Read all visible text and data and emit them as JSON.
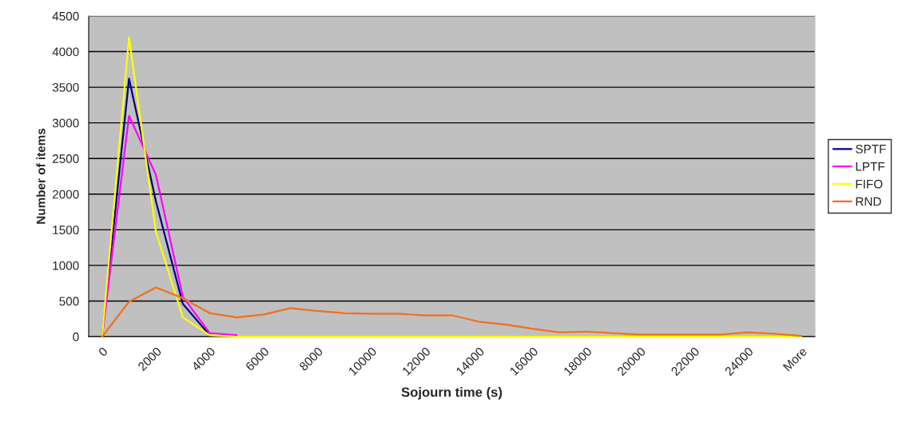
{
  "chart_data": {
    "type": "line",
    "xlabel": "Sojourn time (s)",
    "ylabel": "Number of items",
    "categories": [
      "0",
      null,
      "2000",
      null,
      "4000",
      null,
      "6000",
      null,
      "8000",
      null,
      "10000",
      null,
      "12000",
      null,
      "14000",
      null,
      "16000",
      null,
      "18000",
      null,
      "20000",
      null,
      "22000",
      null,
      "24000",
      null,
      "More"
    ],
    "series": [
      {
        "name": "SPTF",
        "color": "#000080",
        "values": [
          0,
          3620,
          1900,
          460,
          20,
          null,
          null,
          null,
          null,
          null,
          null,
          null,
          null,
          null,
          null,
          null,
          null,
          null,
          null,
          null,
          null,
          null,
          null,
          null,
          null,
          null,
          null
        ]
      },
      {
        "name": "LPTF",
        "color": "#ff00ff",
        "values": [
          0,
          3100,
          2270,
          560,
          50,
          20,
          null,
          null,
          null,
          null,
          null,
          null,
          null,
          null,
          null,
          null,
          null,
          null,
          null,
          null,
          null,
          null,
          null,
          null,
          null,
          null,
          null
        ]
      },
      {
        "name": "FIFO",
        "color": "#ffff00",
        "values": [
          0,
          4200,
          1470,
          270,
          20,
          0,
          0,
          0,
          0,
          0,
          0,
          0,
          0,
          0,
          0,
          0,
          0,
          0,
          0,
          0,
          0,
          0,
          0,
          0,
          0,
          0,
          0
        ]
      },
      {
        "name": "RND",
        "color": "#f07020",
        "values": [
          0,
          490,
          690,
          540,
          330,
          270,
          310,
          400,
          360,
          330,
          320,
          320,
          300,
          300,
          210,
          170,
          110,
          60,
          70,
          50,
          30,
          30,
          30,
          30,
          60,
          40,
          10
        ]
      }
    ],
    "ylim": [
      0,
      4500
    ],
    "yticks": [
      0,
      500,
      1000,
      1500,
      2000,
      2500,
      3000,
      3500,
      4000,
      4500
    ],
    "grid": "y",
    "legend": "right",
    "marker": "none",
    "line_style": "solid"
  }
}
